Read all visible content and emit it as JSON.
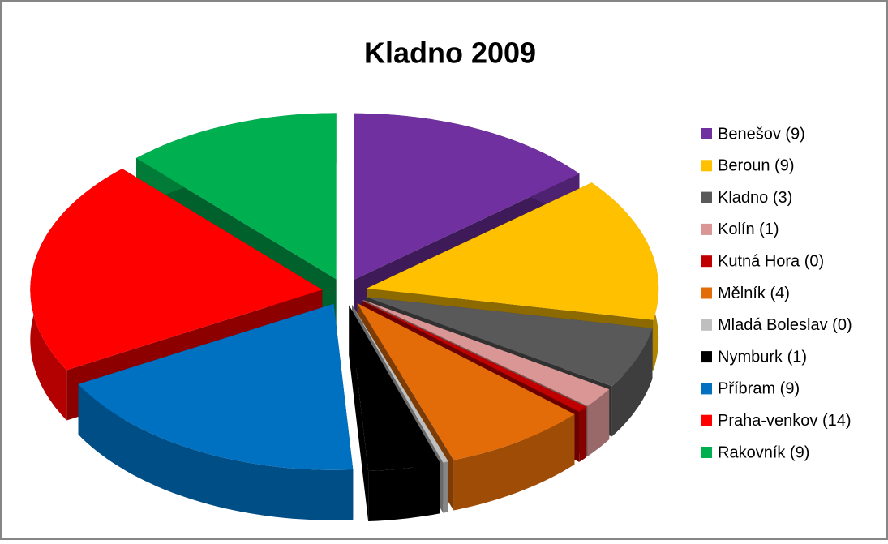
{
  "chart_data": {
    "type": "pie",
    "title": "Kladno 2009",
    "categories": [
      "Benešov (9)",
      "Beroun (9)",
      "Kladno (3)",
      "Kolín (1)",
      "Kutná Hora (0)",
      "Mělník (4)",
      "Mladá Boleslav (0)",
      "Nymburk (1)",
      "Příbram (9)",
      "Praha-venkov (14)",
      "Rakovník (9)"
    ],
    "values": [
      14,
      14,
      6,
      2,
      0.6,
      8,
      0.3,
      4,
      18,
      21,
      12
    ],
    "colors": [
      "#7030a0",
      "#ffc000",
      "#595959",
      "#d99694",
      "#c00000",
      "#e36c09",
      "#bfbfbf",
      "#000000",
      "#0070c0",
      "#ff0000",
      "#00b050"
    ],
    "legend": "right"
  }
}
